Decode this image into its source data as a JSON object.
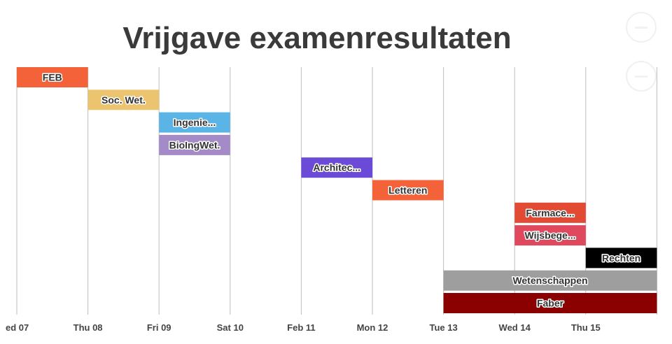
{
  "chart_data": {
    "type": "timeline",
    "title": "Vrijgave examenresultaten",
    "xlabel": "",
    "ylabel": "",
    "x_ticks": [
      "ed 07",
      "Thu 08",
      "Fri 09",
      "Sat 10",
      "Feb 11",
      "Mon 12",
      "Tue 13",
      "Wed 14",
      "Thu 15"
    ],
    "grid": true,
    "tasks": [
      {
        "label": "FEB",
        "start": "2018-02-07",
        "end": "2018-02-08",
        "color": "#f4623a"
      },
      {
        "label": "Soc. Wet.",
        "start": "2018-02-08",
        "end": "2018-02-09",
        "color": "#ecc470"
      },
      {
        "label": "Ingenie...",
        "start": "2018-02-09",
        "end": "2018-02-10",
        "color": "#5ab4e5"
      },
      {
        "label": "BioIngWet.",
        "start": "2018-02-09",
        "end": "2018-02-10",
        "color": "#a48bc8"
      },
      {
        "label": "Architec...",
        "start": "2018-02-11",
        "end": "2018-02-12",
        "color": "#6a4ad6"
      },
      {
        "label": "Letteren",
        "start": "2018-02-12",
        "end": "2018-02-13",
        "color": "#f4623a"
      },
      {
        "label": "Farmace...",
        "start": "2018-02-14",
        "end": "2018-02-15",
        "color": "#e34a33"
      },
      {
        "label": "Wijsbege...",
        "start": "2018-02-14",
        "end": "2018-02-15",
        "color": "#e0485e"
      },
      {
        "label": "Rechten",
        "start": "2018-02-15",
        "end": "2018-02-16",
        "color": "#000000"
      },
      {
        "label": "Wetenschappen",
        "start": "2018-02-13",
        "end": "2018-02-16",
        "color": "#9e9e9e"
      },
      {
        "label": "Faber",
        "start": "2018-02-13",
        "end": "2018-02-16",
        "color": "#8b0000"
      }
    ]
  }
}
